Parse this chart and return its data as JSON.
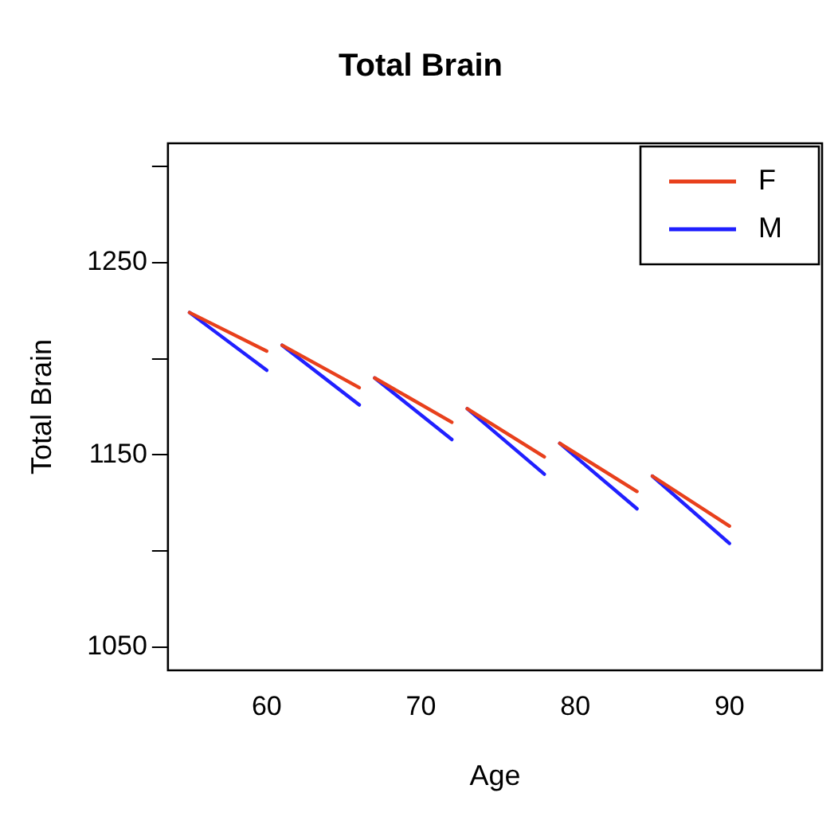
{
  "chart_data": {
    "type": "line",
    "title": "Total Brain",
    "xlabel": "Age",
    "ylabel": "Total Brain",
    "xlim": [
      53.6,
      96
    ],
    "xticks": [
      60,
      70,
      80,
      90
    ],
    "ylim": [
      1038,
      1312
    ],
    "yticks": [
      1050,
      {
        "value": 1100,
        "label": null
      },
      1150,
      {
        "value": 1200,
        "label": null
      },
      1250,
      {
        "value": 1300,
        "label": null
      }
    ],
    "grid": false,
    "legend": "top right",
    "marker": "none",
    "line_style": "solid",
    "series": [
      {
        "name": "F",
        "color": "#e8401c",
        "x": [
          55,
          60
        ],
        "values": [
          1224,
          1204
        ]
      },
      {
        "name": "M",
        "color": "#2020ff",
        "x": [
          55,
          60
        ],
        "values": [
          1224,
          1194
        ]
      },
      {
        "color": "#e8401c",
        "x": [
          61,
          66
        ],
        "values": [
          1207,
          1185
        ]
      },
      {
        "color": "#2020ff",
        "x": [
          61,
          66
        ],
        "values": [
          1207,
          1176
        ]
      },
      {
        "color": "#e8401c",
        "x": [
          67,
          72
        ],
        "values": [
          1190,
          1167
        ]
      },
      {
        "color": "#2020ff",
        "x": [
          67,
          72
        ],
        "values": [
          1190,
          1158
        ]
      },
      {
        "color": "#e8401c",
        "x": [
          73,
          78
        ],
        "values": [
          1174,
          1149
        ]
      },
      {
        "color": "#2020ff",
        "x": [
          73,
          78
        ],
        "values": [
          1174,
          1140
        ]
      },
      {
        "color": "#e8401c",
        "x": [
          79,
          84
        ],
        "values": [
          1156,
          1131
        ]
      },
      {
        "color": "#2020ff",
        "x": [
          79,
          84
        ],
        "values": [
          1156,
          1122
        ]
      },
      {
        "color": "#e8401c",
        "x": [
          85,
          90
        ],
        "values": [
          1139,
          1113
        ]
      },
      {
        "color": "#2020ff",
        "x": [
          85,
          90
        ],
        "values": [
          1139,
          1104
        ]
      }
    ]
  }
}
